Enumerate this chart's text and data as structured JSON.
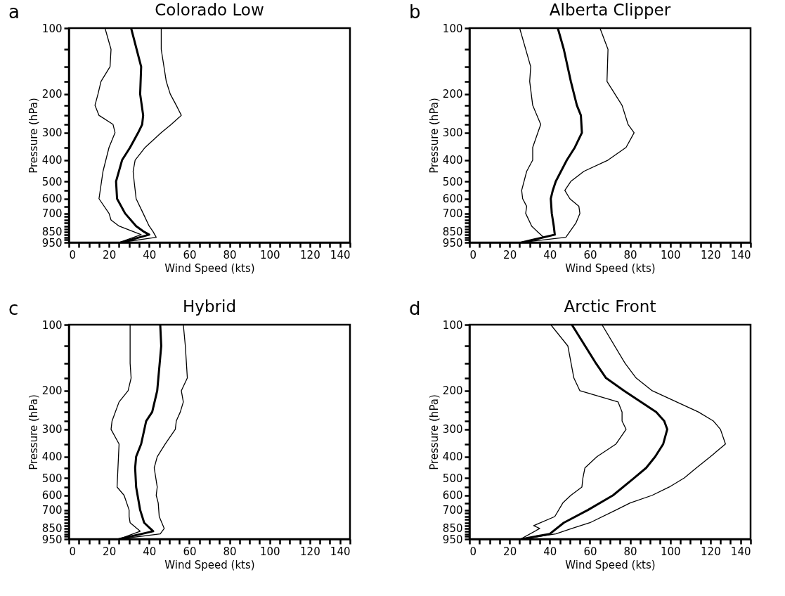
{
  "chart_data": [
    {
      "type": "line",
      "title": "Colorado Low",
      "xlabel": "Wind Speed (kts)",
      "ylabel": "Pressure (hPa)",
      "annotations": [
        "a"
      ],
      "log": "y",
      "xlim": [
        0,
        140
      ],
      "ylim": [
        950,
        100
      ],
      "xticks": [
        0,
        {
          "value": 5,
          "label": null
        },
        {
          "value": 10,
          "label": null
        },
        {
          "value": 15,
          "label": null
        },
        20,
        {
          "value": 25,
          "label": null
        },
        {
          "value": 30,
          "label": null
        },
        {
          "value": 35,
          "label": null
        },
        40,
        {
          "value": 45,
          "label": null
        },
        {
          "value": 50,
          "label": null
        },
        {
          "value": 55,
          "label": null
        },
        60,
        {
          "value": 65,
          "label": null
        },
        {
          "value": 70,
          "label": null
        },
        {
          "value": 75,
          "label": null
        },
        80,
        {
          "value": 85,
          "label": null
        },
        {
          "value": 90,
          "label": null
        },
        {
          "value": 95,
          "label": null
        },
        100,
        {
          "value": 105,
          "label": null
        },
        {
          "value": 110,
          "label": null
        },
        {
          "value": 115,
          "label": null
        },
        120,
        {
          "value": 125,
          "label": null
        },
        {
          "value": 130,
          "label": null
        },
        {
          "value": 135,
          "label": null
        },
        140
      ],
      "yticks": [
        100,
        {
          "value": 125,
          "label": null
        },
        {
          "value": 150,
          "label": null
        },
        {
          "value": 175,
          "label": null
        },
        200,
        {
          "value": 225,
          "label": null
        },
        {
          "value": 250,
          "label": null
        },
        {
          "value": 275,
          "label": null
        },
        300,
        {
          "value": 350,
          "label": null
        },
        400,
        {
          "value": 450,
          "label": null
        },
        500,
        {
          "value": 550,
          "label": null
        },
        600,
        {
          "value": 650,
          "label": null
        },
        700,
        {
          "value": 725,
          "label": null
        },
        {
          "value": 750,
          "label": null
        },
        {
          "value": 775,
          "label": null
        },
        {
          "value": 800,
          "label": null
        },
        {
          "value": 825,
          "label": null
        },
        850,
        {
          "value": 875,
          "label": null
        },
        {
          "value": 900,
          "label": null
        },
        {
          "value": 925,
          "label": null
        },
        950
      ],
      "series": [
        {
          "color": "#000000",
          "x": [
            18,
            21,
            20.5,
            16,
            14.5,
            13,
            15,
            22,
            23,
            20,
            17,
            15,
            20,
            21,
            25,
            36,
            25
          ],
          "values": [
            100,
            125,
            150,
            175,
            200,
            225,
            250,
            275,
            300,
            350,
            450,
            600,
            700,
            750,
            800,
            875,
            950
          ]
        },
        {
          "color": "#000000",
          "x": [
            31,
            36,
            35.5,
            37,
            36.5,
            34.5,
            30.5,
            26.5,
            23.5,
            24,
            28,
            33.5,
            37.5,
            40,
            26
          ],
          "values": [
            100,
            150,
            200,
            250,
            275,
            300,
            350,
            400,
            500,
            600,
            700,
            800,
            850,
            875,
            950
          ]
        },
        {
          "color": "#000000",
          "x": [
            46,
            46,
            48.5,
            50.5,
            53.5,
            56,
            51,
            46,
            38,
            33,
            32,
            32.5,
            33.5,
            37,
            40,
            42,
            43.5,
            26
          ],
          "values": [
            100,
            125,
            175,
            200,
            225,
            250,
            275,
            300,
            350,
            400,
            450,
            500,
            600,
            700,
            800,
            850,
            900,
            950
          ]
        }
      ]
    },
    {
      "type": "line",
      "title": "Alberta Clipper",
      "xlabel": "Wind Speed (kts)",
      "ylabel": "Pressure (hPa)",
      "annotations": [
        "b"
      ],
      "log": "y",
      "xlim": [
        0,
        140
      ],
      "ylim": [
        950,
        100
      ],
      "xticks": [
        0,
        {
          "value": 5,
          "label": null
        },
        {
          "value": 10,
          "label": null
        },
        {
          "value": 15,
          "label": null
        },
        20,
        {
          "value": 25,
          "label": null
        },
        {
          "value": 30,
          "label": null
        },
        {
          "value": 35,
          "label": null
        },
        40,
        {
          "value": 45,
          "label": null
        },
        {
          "value": 50,
          "label": null
        },
        {
          "value": 55,
          "label": null
        },
        60,
        {
          "value": 65,
          "label": null
        },
        {
          "value": 70,
          "label": null
        },
        {
          "value": 75,
          "label": null
        },
        80,
        {
          "value": 85,
          "label": null
        },
        {
          "value": 90,
          "label": null
        },
        {
          "value": 95,
          "label": null
        },
        100,
        {
          "value": 105,
          "label": null
        },
        {
          "value": 110,
          "label": null
        },
        {
          "value": 115,
          "label": null
        },
        120,
        {
          "value": 125,
          "label": null
        },
        {
          "value": 130,
          "label": null
        },
        {
          "value": 135,
          "label": null
        },
        140
      ],
      "yticks": [
        100,
        {
          "value": 125,
          "label": null
        },
        {
          "value": 150,
          "label": null
        },
        {
          "value": 175,
          "label": null
        },
        200,
        {
          "value": 225,
          "label": null
        },
        {
          "value": 250,
          "label": null
        },
        {
          "value": 275,
          "label": null
        },
        300,
        {
          "value": 350,
          "label": null
        },
        400,
        {
          "value": 450,
          "label": null
        },
        500,
        {
          "value": 550,
          "label": null
        },
        600,
        {
          "value": 650,
          "label": null
        },
        700,
        {
          "value": 725,
          "label": null
        },
        {
          "value": 750,
          "label": null
        },
        {
          "value": 775,
          "label": null
        },
        {
          "value": 800,
          "label": null
        },
        {
          "value": 825,
          "label": null
        },
        850,
        {
          "value": 875,
          "label": null
        },
        {
          "value": 900,
          "label": null
        },
        {
          "value": 925,
          "label": null
        },
        950
      ],
      "series": [
        {
          "color": "#000000",
          "x": [
            25,
            30.5,
            30,
            31.5,
            35.5,
            31.5,
            31.5,
            28.5,
            26,
            26.5,
            28.5,
            28,
            31,
            34,
            37,
            26
          ],
          "values": [
            100,
            150,
            175,
            225,
            275,
            350,
            400,
            450,
            550,
            600,
            650,
            700,
            800,
            850,
            900,
            950
          ]
        },
        {
          "color": "#000000",
          "x": [
            44,
            47,
            50.5,
            53.5,
            55.5,
            56,
            52.5,
            48.5,
            43,
            41.5,
            40.5,
            41,
            42,
            42.5,
            26
          ],
          "values": [
            100,
            125,
            175,
            225,
            250,
            300,
            350,
            400,
            500,
            550,
            600,
            700,
            800,
            875,
            950
          ]
        },
        {
          "color": "#000000",
          "x": [
            65,
            69,
            68.5,
            76,
            79,
            82,
            78,
            69,
            57,
            50.5,
            47.5,
            50,
            54.5,
            55,
            53,
            48,
            26
          ],
          "values": [
            100,
            125,
            175,
            225,
            275,
            300,
            350,
            400,
            450,
            500,
            550,
            600,
            650,
            700,
            775,
            900,
            950
          ]
        }
      ]
    },
    {
      "type": "line",
      "title": "Hybrid",
      "xlabel": "Wind Speed (kts)",
      "ylabel": "Pressure (hPa)",
      "annotations": [
        "c"
      ],
      "log": "y",
      "xlim": [
        0,
        140
      ],
      "ylim": [
        950,
        100
      ],
      "xticks": [
        0,
        {
          "value": 5,
          "label": null
        },
        {
          "value": 10,
          "label": null
        },
        {
          "value": 15,
          "label": null
        },
        20,
        {
          "value": 25,
          "label": null
        },
        {
          "value": 30,
          "label": null
        },
        {
          "value": 35,
          "label": null
        },
        40,
        {
          "value": 45,
          "label": null
        },
        {
          "value": 50,
          "label": null
        },
        {
          "value": 55,
          "label": null
        },
        60,
        {
          "value": 65,
          "label": null
        },
        {
          "value": 70,
          "label": null
        },
        {
          "value": 75,
          "label": null
        },
        80,
        {
          "value": 85,
          "label": null
        },
        {
          "value": 90,
          "label": null
        },
        {
          "value": 95,
          "label": null
        },
        100,
        {
          "value": 105,
          "label": null
        },
        {
          "value": 110,
          "label": null
        },
        {
          "value": 115,
          "label": null
        },
        120,
        {
          "value": 125,
          "label": null
        },
        {
          "value": 130,
          "label": null
        },
        {
          "value": 135,
          "label": null
        },
        140
      ],
      "yticks": [
        100,
        {
          "value": 125,
          "label": null
        },
        {
          "value": 150,
          "label": null
        },
        {
          "value": 175,
          "label": null
        },
        200,
        {
          "value": 225,
          "label": null
        },
        {
          "value": 250,
          "label": null
        },
        {
          "value": 275,
          "label": null
        },
        300,
        {
          "value": 350,
          "label": null
        },
        400,
        {
          "value": 450,
          "label": null
        },
        500,
        {
          "value": 550,
          "label": null
        },
        600,
        {
          "value": 650,
          "label": null
        },
        700,
        {
          "value": 725,
          "label": null
        },
        {
          "value": 750,
          "label": null
        },
        {
          "value": 775,
          "label": null
        },
        {
          "value": 800,
          "label": null
        },
        {
          "value": 825,
          "label": null
        },
        850,
        {
          "value": 875,
          "label": null
        },
        {
          "value": 900,
          "label": null
        },
        {
          "value": 925,
          "label": null
        },
        950
      ],
      "series": [
        {
          "color": "#000000",
          "x": [
            30.5,
            30.5,
            31,
            29.5,
            25,
            21.5,
            21,
            25,
            24,
            27.5,
            30,
            30,
            30.5,
            35.5,
            25
          ],
          "values": [
            100,
            150,
            175,
            200,
            225,
            275,
            300,
            350,
            550,
            600,
            700,
            750,
            800,
            875,
            950
          ]
        },
        {
          "color": "#000000",
          "x": [
            45.5,
            46,
            44,
            41.5,
            38.5,
            36,
            33.5,
            33,
            33.5,
            35.5,
            37.5,
            42,
            25
          ],
          "values": [
            100,
            125,
            200,
            250,
            275,
            350,
            400,
            450,
            550,
            700,
            800,
            875,
            950
          ]
        },
        {
          "color": "#000000",
          "x": [
            57,
            58,
            59,
            56,
            57,
            55.5,
            53.5,
            53,
            48,
            44,
            42.5,
            44,
            43.5,
            44.5,
            45,
            47.5,
            45.5,
            25
          ],
          "values": [
            100,
            125,
            175,
            200,
            225,
            250,
            275,
            300,
            350,
            400,
            450,
            550,
            600,
            650,
            750,
            850,
            900,
            950
          ]
        }
      ]
    },
    {
      "type": "line",
      "title": "Arctic Front",
      "xlabel": "Wind Speed (kts)",
      "ylabel": "Pressure (hPa)",
      "annotations": [
        "d"
      ],
      "log": "y",
      "xlim": [
        0,
        140
      ],
      "ylim": [
        950,
        100
      ],
      "xticks": [
        0,
        {
          "value": 5,
          "label": null
        },
        {
          "value": 10,
          "label": null
        },
        {
          "value": 15,
          "label": null
        },
        20,
        {
          "value": 25,
          "label": null
        },
        {
          "value": 30,
          "label": null
        },
        {
          "value": 35,
          "label": null
        },
        40,
        {
          "value": 45,
          "label": null
        },
        {
          "value": 50,
          "label": null
        },
        {
          "value": 55,
          "label": null
        },
        60,
        {
          "value": 65,
          "label": null
        },
        {
          "value": 70,
          "label": null
        },
        {
          "value": 75,
          "label": null
        },
        80,
        {
          "value": 85,
          "label": null
        },
        {
          "value": 90,
          "label": null
        },
        {
          "value": 95,
          "label": null
        },
        100,
        {
          "value": 105,
          "label": null
        },
        {
          "value": 110,
          "label": null
        },
        {
          "value": 115,
          "label": null
        },
        120,
        {
          "value": 125,
          "label": null
        },
        {
          "value": 130,
          "label": null
        },
        {
          "value": 135,
          "label": null
        },
        140
      ],
      "yticks": [
        100,
        {
          "value": 125,
          "label": null
        },
        {
          "value": 150,
          "label": null
        },
        {
          "value": 175,
          "label": null
        },
        200,
        {
          "value": 225,
          "label": null
        },
        {
          "value": 250,
          "label": null
        },
        {
          "value": 275,
          "label": null
        },
        300,
        {
          "value": 350,
          "label": null
        },
        400,
        {
          "value": 450,
          "label": null
        },
        500,
        {
          "value": 550,
          "label": null
        },
        600,
        {
          "value": 650,
          "label": null
        },
        700,
        {
          "value": 725,
          "label": null
        },
        {
          "value": 750,
          "label": null
        },
        {
          "value": 775,
          "label": null
        },
        {
          "value": 800,
          "label": null
        },
        {
          "value": 825,
          "label": null
        },
        850,
        {
          "value": 875,
          "label": null
        },
        {
          "value": 900,
          "label": null
        },
        {
          "value": 925,
          "label": null
        },
        950
      ],
      "series": [
        {
          "color": "#000000",
          "x": [
            40.5,
            49,
            52,
            55,
            74,
            76,
            76,
            78,
            73,
            63.5,
            57.5,
            56.5,
            56,
            50.5,
            46.5,
            42.5,
            32,
            35,
            25.5
          ],
          "values": [
            100,
            125,
            175,
            200,
            225,
            250,
            275,
            300,
            350,
            400,
            450,
            500,
            550,
            600,
            650,
            750,
            825,
            850,
            950
          ]
        },
        {
          "color": "#000000",
          "x": [
            51,
            63,
            68,
            77,
            93,
            97,
            98.5,
            96.5,
            92.5,
            88,
            82,
            71.5,
            59,
            47,
            40,
            26
          ],
          "values": [
            100,
            150,
            175,
            200,
            250,
            275,
            300,
            350,
            400,
            450,
            500,
            600,
            700,
            800,
            900,
            950
          ]
        },
        {
          "color": "#000000",
          "x": [
            66,
            77.5,
            83,
            91,
            114,
            121.5,
            125,
            127.5,
            120,
            113,
            107,
            99.5,
            91,
            80,
            73,
            60,
            51,
            43,
            26
          ],
          "values": [
            100,
            150,
            175,
            200,
            250,
            275,
            300,
            350,
            400,
            450,
            500,
            550,
            600,
            650,
            700,
            800,
            850,
            900,
            950
          ]
        }
      ]
    }
  ]
}
